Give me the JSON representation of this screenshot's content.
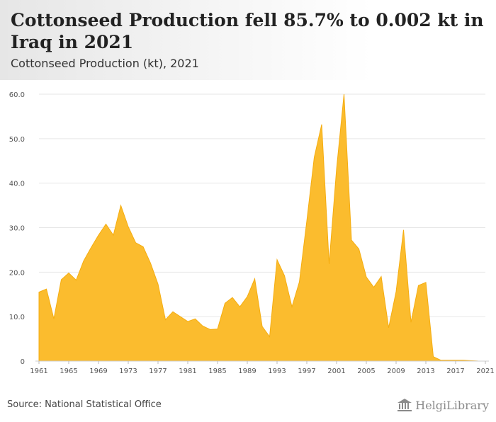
{
  "header": {
    "title": "Cottonseed Production fell 85.7% to 0.002 kt in Iraq in 2021",
    "subtitle": "Cottonseed Production (kt), 2021"
  },
  "footer": {
    "source": "Source: National Statistical Office",
    "logo_text": "HelgiLibrary"
  },
  "colors": {
    "area_fill": "#fbbc2e",
    "area_stroke": "#f5ad10",
    "grid": "#e6e6e6"
  },
  "chart_data": {
    "type": "area",
    "title": "Cottonseed Production fell 85.7% to 0.002 kt in Iraq in 2021",
    "ylabel": "Cottonseed Production (kt)",
    "xlabel": "",
    "ylim": [
      0,
      60
    ],
    "y_ticks": [
      "0",
      "10.0",
      "20.0",
      "30.0",
      "40.0",
      "50.0",
      "60.0"
    ],
    "x_ticks": [
      "1961",
      "1965",
      "1969",
      "1973",
      "1977",
      "1981",
      "1985",
      "1989",
      "1993",
      "1997",
      "2001",
      "2005",
      "2009",
      "2013",
      "2017",
      "2021"
    ],
    "grid": true,
    "series": [
      {
        "x": [
          1961,
          1962,
          1963,
          1964,
          1965,
          1966,
          1967,
          1968,
          1969,
          1970,
          1971,
          1972,
          1973,
          1974,
          1975,
          1976,
          1977,
          1978,
          1979,
          1980,
          1981,
          1982,
          1983,
          1984,
          1985,
          1986,
          1987,
          1988,
          1989,
          1990,
          1991,
          1992,
          1993,
          1994,
          1995,
          1996,
          1997,
          1998,
          1999,
          2000,
          2001,
          2002,
          2003,
          2004,
          2005,
          2006,
          2007,
          2008,
          2009,
          2010,
          2011,
          2012,
          2013,
          2014,
          2015,
          2016,
          2017,
          2018,
          2019,
          2020,
          2021
        ],
        "values": [
          15.5,
          16.2,
          9.5,
          18.3,
          19.8,
          18.2,
          22.5,
          25.5,
          28.3,
          30.8,
          28.3,
          35.0,
          30.2,
          26.6,
          25.7,
          22.0,
          17.3,
          9.3,
          11.1,
          10.0,
          8.9,
          9.5,
          7.9,
          7.1,
          7.2,
          13.0,
          14.3,
          12.2,
          14.5,
          18.5,
          7.8,
          5.5,
          22.8,
          19.2,
          12.2,
          17.8,
          31.5,
          45.8,
          53.2,
          21.8,
          43.2,
          60.0,
          27.2,
          25.2,
          18.9,
          16.6,
          19.0,
          7.5,
          15.6,
          29.5,
          8.7,
          17.0,
          17.7,
          1.0,
          0.2,
          0.2,
          0.2,
          0.2,
          0.1,
          0.014,
          0.002
        ]
      }
    ]
  }
}
